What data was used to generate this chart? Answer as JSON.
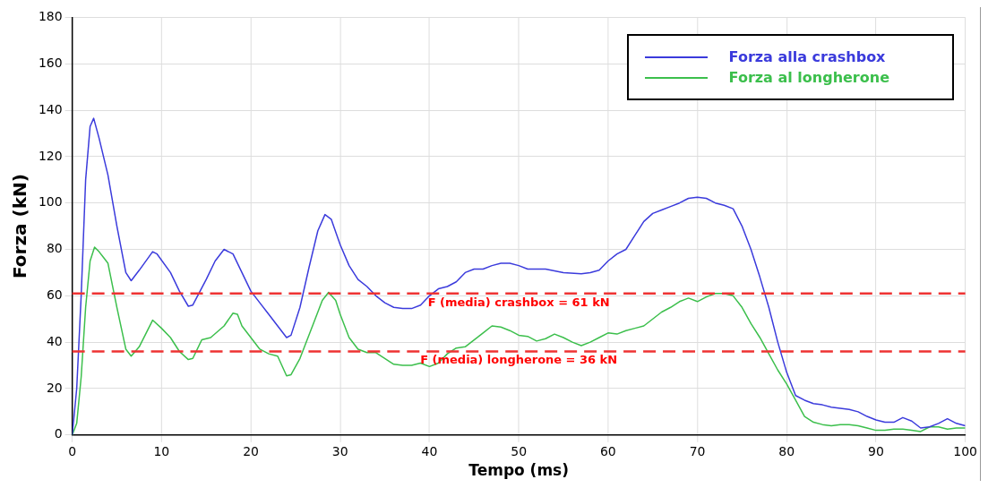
{
  "chart_data": {
    "type": "line",
    "xlabel": "Tempo (ms)",
    "ylabel": "Forza (kN)",
    "xlim": [
      0,
      100
    ],
    "xticks": [
      0,
      10,
      20,
      30,
      40,
      50,
      60,
      70,
      80,
      90,
      100
    ],
    "ylim": [
      0,
      180
    ],
    "yticks": [
      0,
      20,
      40,
      60,
      80,
      100,
      120,
      140,
      160,
      180
    ],
    "grid": true,
    "legend": "top right",
    "marker": "none",
    "line_style": "solid",
    "series": [
      {
        "name": "Forza alla crashbox",
        "color": "#3b3bdc",
        "x": [
          0,
          0.5,
          1,
          1.5,
          2,
          2.4,
          3,
          4,
          5,
          6,
          6.6,
          7.5,
          9,
          9.5,
          11,
          12,
          13,
          13.5,
          15,
          16,
          17,
          18,
          19,
          20,
          21,
          22,
          23,
          24,
          24.5,
          25.5,
          26.5,
          27.5,
          28.3,
          29,
          30,
          31,
          32,
          33,
          34,
          35,
          36,
          37,
          38,
          39,
          40,
          41,
          42,
          43,
          44,
          45,
          46,
          47,
          48,
          49,
          50,
          51,
          52,
          53,
          55,
          57,
          58,
          59,
          60,
          61,
          62,
          63,
          64,
          65,
          66,
          67,
          68,
          69,
          70,
          71,
          72,
          73,
          74,
          75,
          76,
          77,
          78,
          79,
          80,
          81,
          82,
          83,
          84,
          85,
          86,
          87,
          88,
          89,
          90,
          91,
          92,
          93,
          94,
          95,
          96,
          97,
          98,
          99,
          100
        ],
        "values": [
          0,
          20,
          60,
          110,
          133,
          136.5,
          128,
          112,
          90,
          70,
          66.5,
          71,
          79,
          78,
          70,
          62,
          55.5,
          56,
          67,
          75,
          80,
          78,
          70,
          62,
          57,
          52,
          47,
          42,
          43,
          55,
          72,
          88,
          95,
          93,
          82,
          73,
          67,
          64,
          60,
          57,
          55,
          54.5,
          54.5,
          56,
          60,
          63,
          64,
          66,
          70,
          71.5,
          71.5,
          73,
          74,
          74,
          73,
          71.5,
          71.5,
          71.5,
          70,
          69.5,
          70,
          71,
          75,
          78,
          80,
          86,
          92,
          95.5,
          97,
          98.5,
          100,
          102,
          102.5,
          102,
          100,
          99,
          97.5,
          90,
          80,
          68,
          55,
          40,
          27,
          17,
          15,
          13.5,
          13,
          12,
          11.5,
          11,
          10,
          8,
          6.5,
          5.5,
          5.5,
          7.5,
          6,
          3,
          3.5,
          5,
          7,
          5,
          4
        ]
      },
      {
        "name": "Forza al longherone",
        "color": "#3cbf4c",
        "x": [
          0,
          0.5,
          1,
          1.5,
          2,
          2.5,
          3,
          3.5,
          4,
          5,
          6,
          6.6,
          7.5,
          9,
          10,
          11,
          12,
          13,
          13.5,
          14.5,
          15.5,
          17,
          18,
          18.5,
          19,
          20,
          21,
          22,
          23,
          24,
          24.5,
          25.5,
          27,
          28,
          28.7,
          29.5,
          30,
          31,
          32,
          33,
          34,
          35,
          36,
          37,
          38,
          39,
          40,
          41,
          42,
          43,
          44,
          45,
          46,
          47,
          48,
          49,
          50,
          51,
          52,
          53,
          54,
          55,
          56,
          57,
          58,
          59,
          60,
          61,
          62,
          63,
          64,
          65,
          66,
          67,
          68,
          69,
          70,
          71,
          72,
          73,
          74,
          75,
          76,
          77,
          78,
          79,
          80,
          81,
          82,
          83,
          84,
          85,
          86,
          87,
          88,
          89,
          90,
          91,
          92,
          93,
          94,
          95,
          96,
          97,
          98,
          99,
          100
        ],
        "values": [
          0,
          5,
          25,
          55,
          75,
          81,
          79,
          76.5,
          74,
          55,
          37,
          34,
          38,
          49.5,
          46,
          42,
          36,
          32.5,
          33,
          41,
          42,
          47,
          52.5,
          52,
          47,
          42,
          37,
          35,
          34,
          25.5,
          26,
          33,
          48,
          58,
          61.5,
          58,
          52,
          42,
          37,
          35.5,
          35.5,
          33,
          30.5,
          30,
          30,
          31,
          29.5,
          31,
          35,
          37.5,
          38,
          41,
          44,
          47,
          46.5,
          45,
          43,
          42.5,
          40.5,
          41.5,
          43.5,
          42,
          40,
          38.5,
          40,
          42,
          44,
          43.5,
          45,
          46,
          47,
          50,
          53,
          55,
          57.5,
          59,
          57.5,
          59.5,
          61,
          61,
          60,
          55,
          48,
          42,
          35,
          28,
          22,
          15,
          8,
          5.5,
          4.5,
          4,
          4.5,
          4.5,
          4,
          3,
          2,
          2,
          2.5,
          2.5,
          2,
          1.5,
          3.5,
          3.5,
          2.5,
          3,
          3
        ]
      }
    ],
    "ref_lines": [
      {
        "axis": "y",
        "value": 61,
        "label": "F (media) crashbox = 61 kN",
        "color": "#ee3333",
        "line_style": "dashed"
      },
      {
        "axis": "y",
        "value": 36,
        "label": "F (media) longherone = 36 kN",
        "color": "#ee3333",
        "line_style": "dashed"
      }
    ]
  }
}
